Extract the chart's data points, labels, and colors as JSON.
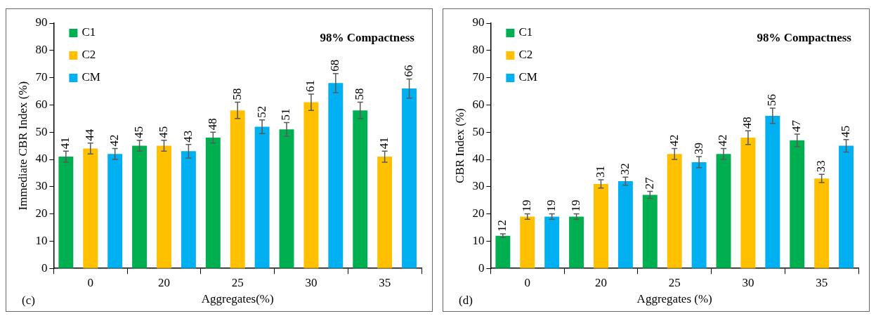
{
  "chart_data": [
    {
      "type": "bar",
      "xlabel": "Aggregates(%)",
      "ylabel": "Immediate CBR Index (%)",
      "categories": [
        "0",
        "20",
        "25",
        "30",
        "35"
      ],
      "ylim": [
        0,
        90
      ],
      "yticks": [
        0,
        10,
        20,
        30,
        40,
        50,
        60,
        70,
        80,
        90
      ],
      "grid": false,
      "legend": "top left",
      "data_labels": true,
      "series": [
        {
          "name": "C1",
          "color": "#00b050",
          "values": [
            41,
            45,
            48,
            51,
            58
          ],
          "errors": [
            2,
            2,
            2,
            2.5,
            3
          ]
        },
        {
          "name": "C2",
          "color": "#ffc000",
          "values": [
            44,
            45,
            58,
            61,
            41
          ],
          "errors": [
            2,
            2,
            3,
            3,
            2
          ]
        },
        {
          "name": "CM",
          "color": "#00b0f0",
          "values": [
            42,
            43,
            52,
            68,
            66
          ],
          "errors": [
            2,
            2.5,
            2.5,
            3.5,
            3.5
          ]
        }
      ],
      "annotations": [
        "98% Compactness",
        "(c)"
      ]
    },
    {
      "type": "bar",
      "xlabel": "Aggregates (%)",
      "ylabel": "CBR Index (%)",
      "categories": [
        "0",
        "20",
        "25",
        "30",
        "35"
      ],
      "ylim": [
        0,
        90
      ],
      "yticks": [
        0,
        10,
        20,
        30,
        40,
        50,
        60,
        70,
        80,
        90
      ],
      "grid": false,
      "legend": "top left",
      "data_labels": true,
      "series": [
        {
          "name": "C1",
          "color": "#00b050",
          "values": [
            12,
            19,
            27,
            42,
            47
          ],
          "errors": [
            0.7,
            1,
            1.3,
            2,
            2.3
          ]
        },
        {
          "name": "C2",
          "color": "#ffc000",
          "values": [
            19,
            31,
            42,
            48,
            33
          ],
          "errors": [
            1,
            1.5,
            2,
            2.5,
            1.5
          ]
        },
        {
          "name": "CM",
          "color": "#00b0f0",
          "values": [
            19,
            32,
            39,
            56,
            45
          ],
          "errors": [
            1,
            1.5,
            2,
            2.8,
            2.3
          ]
        }
      ],
      "annotations": [
        "98% Compactness",
        "(d)"
      ]
    }
  ]
}
